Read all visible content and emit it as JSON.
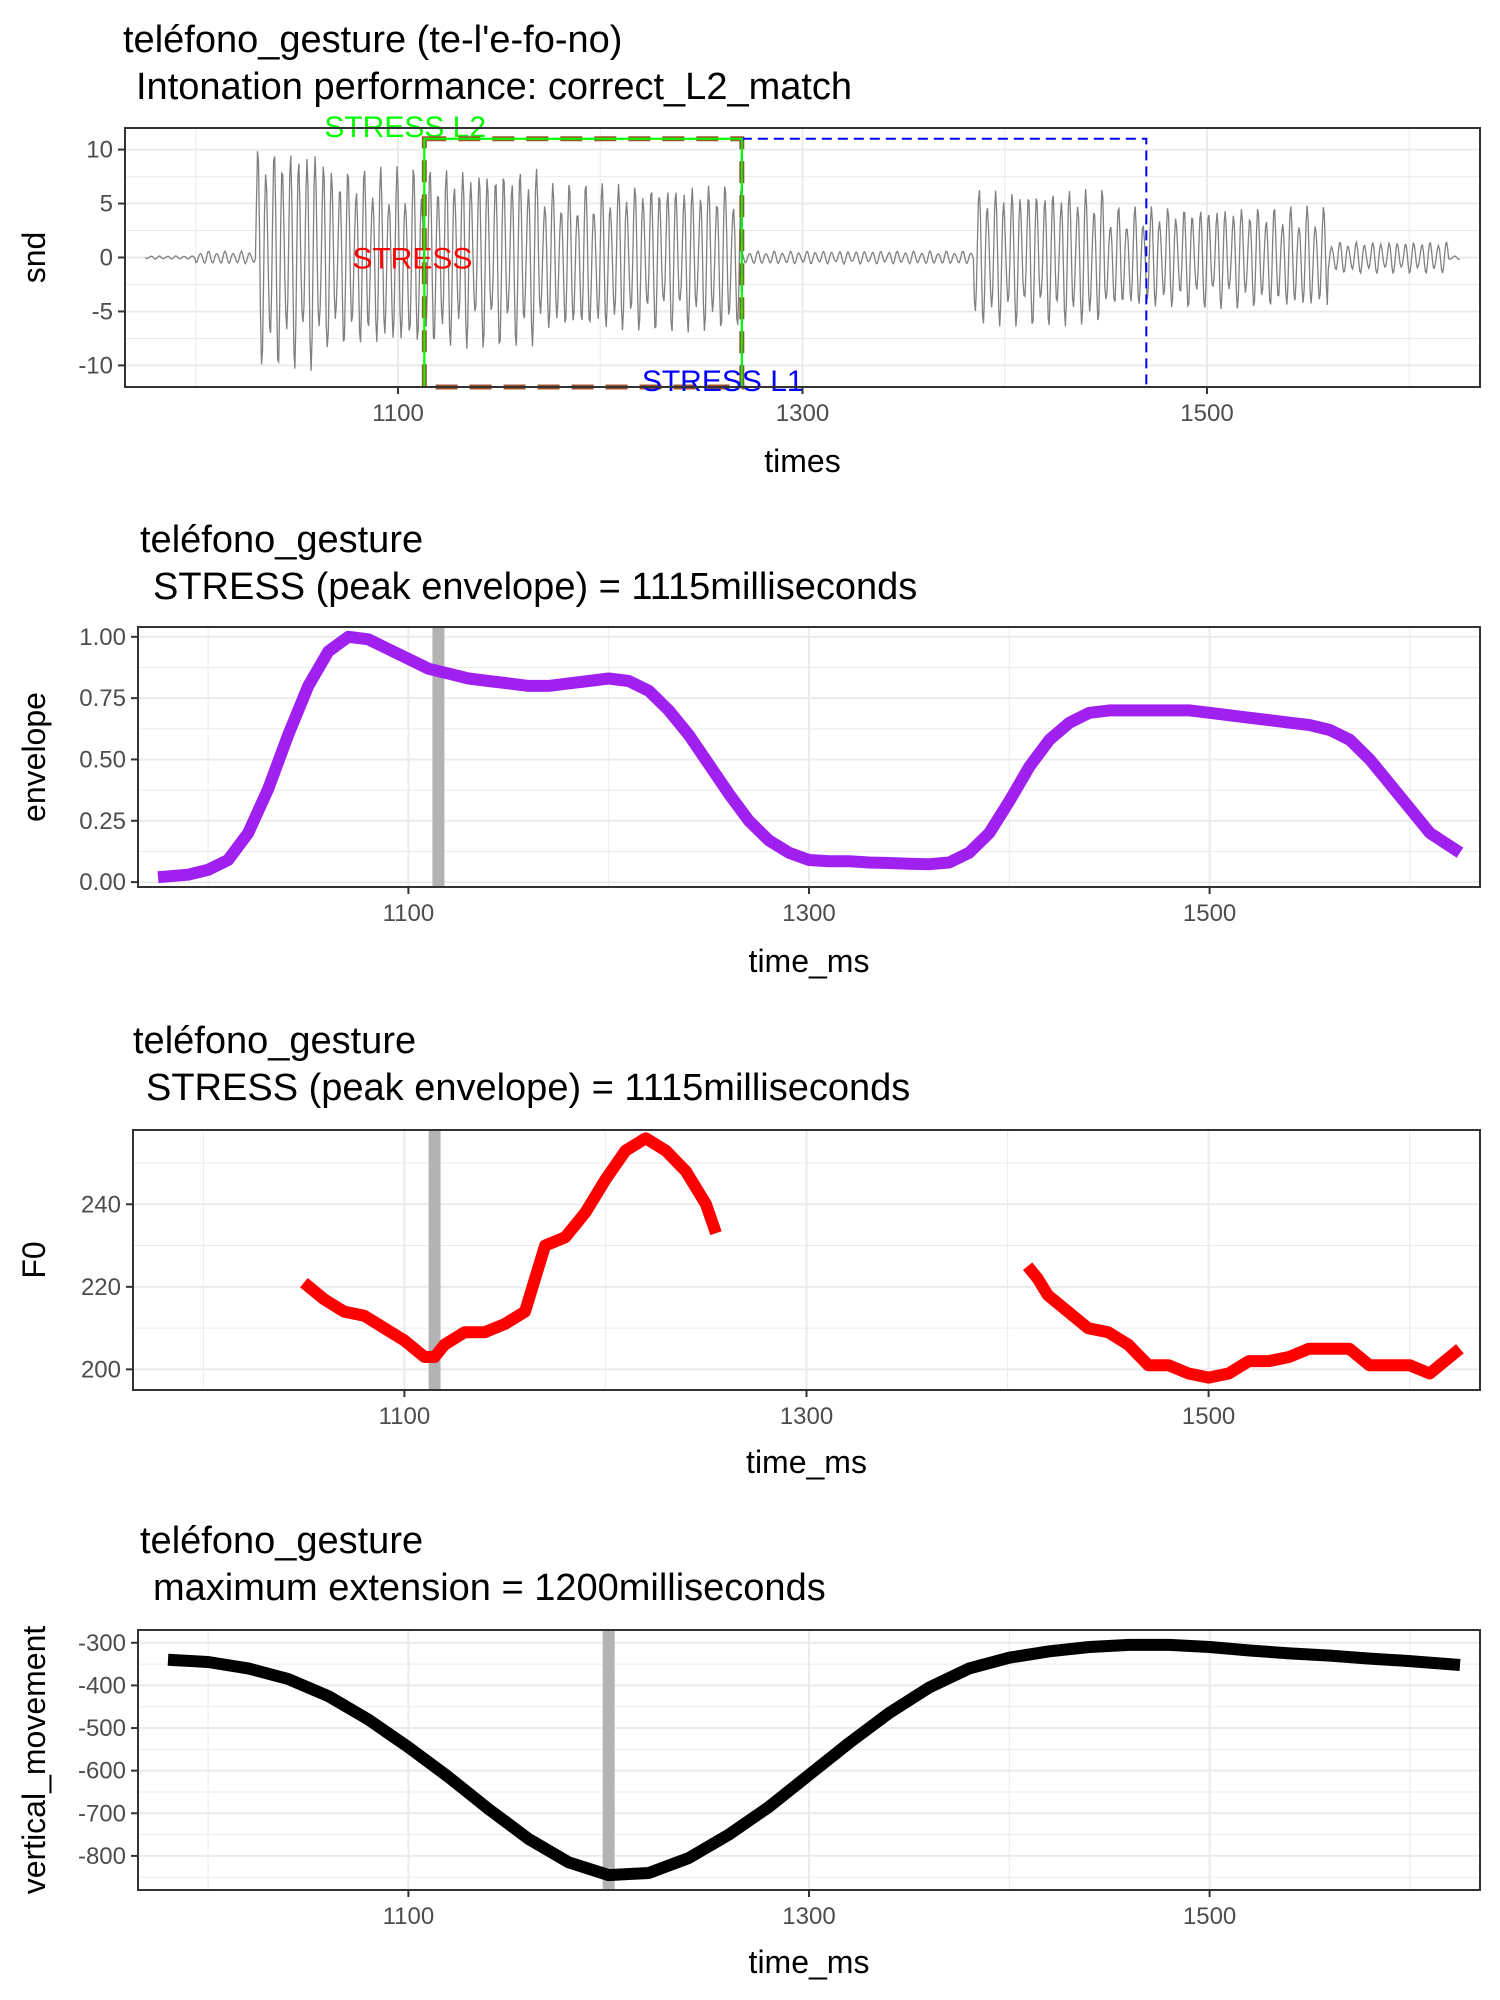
{
  "chart_data": [
    {
      "type": "line",
      "title": "teléfono_gesture  (te-l'e-fo-no)",
      "subtitle": "Intonation performance: correct_L2_match",
      "xlabel": "times",
      "ylabel": "snd",
      "xlim": [
        965,
        1635
      ],
      "ylim": [
        -12,
        12
      ],
      "x_ticks": [
        1100,
        1300,
        1500
      ],
      "y_ticks": [
        10,
        5,
        0,
        -5,
        -10
      ],
      "grid": true,
      "line_color": "#808080",
      "waveform_segments": [
        {
          "start": 1000,
          "end": 1030,
          "amplitude": 0.6
        },
        {
          "start": 1030,
          "end": 1065,
          "amplitude": 10.5
        },
        {
          "start": 1065,
          "end": 1170,
          "amplitude": 8.5
        },
        {
          "start": 1170,
          "end": 1270,
          "amplitude": 7
        },
        {
          "start": 1270,
          "end": 1385,
          "amplitude": 0.6
        },
        {
          "start": 1385,
          "end": 1450,
          "amplitude": 6.5
        },
        {
          "start": 1450,
          "end": 1560,
          "amplitude": 4.8
        },
        {
          "start": 1560,
          "end": 1620,
          "amplitude": 1.5
        }
      ],
      "boxes": [
        {
          "label": "STRESS L2",
          "xmin": 1113,
          "xmax": 1270,
          "ymin": -12,
          "ymax": 11,
          "color": "#00ff00",
          "dashed": false,
          "label_pos": "top"
        },
        {
          "label": "STRESS",
          "xmin": 1113,
          "xmax": 1270,
          "ymin": -12,
          "ymax": 11,
          "color": "#a0522d",
          "dashed": true,
          "label_pos": "middle",
          "label_color": "#ff0000"
        },
        {
          "label": "STRESS L1",
          "xmin": 1270,
          "xmax": 1470,
          "ymin": -12,
          "ymax": 11,
          "color": "#0000ff",
          "dashed": true,
          "label_pos": "bottom"
        }
      ]
    },
    {
      "type": "line",
      "title": "teléfono_gesture",
      "subtitle": "STRESS (peak envelope) = 1115milliseconds",
      "xlabel": "time_ms",
      "ylabel": "envelope",
      "xlim": [
        965,
        1635
      ],
      "ylim": [
        -0.02,
        1.04
      ],
      "x_ticks": [
        1100,
        1300,
        1500
      ],
      "y_ticks": [
        1.0,
        0.75,
        0.5,
        0.25,
        0.0
      ],
      "y_tick_labels": [
        "1.00",
        "0.75",
        "0.50",
        "0.25",
        "0.00"
      ],
      "grid": true,
      "line_color": "#a020f0",
      "vline": 1115,
      "series": [
        {
          "x": [
            975,
            990,
            1000,
            1010,
            1020,
            1030,
            1040,
            1050,
            1060,
            1070,
            1080,
            1090,
            1100,
            1110,
            1120,
            1130,
            1140,
            1150,
            1160,
            1170,
            1180,
            1190,
            1200,
            1210,
            1220,
            1230,
            1240,
            1250,
            1260,
            1270,
            1280,
            1290,
            1300,
            1310,
            1320,
            1330,
            1340,
            1350,
            1360,
            1370,
            1380,
            1390,
            1400,
            1410,
            1420,
            1430,
            1440,
            1450,
            1460,
            1470,
            1480,
            1490,
            1500,
            1510,
            1520,
            1530,
            1540,
            1550,
            1560,
            1570,
            1580,
            1590,
            1600,
            1610,
            1625
          ],
          "values": [
            0.02,
            0.03,
            0.05,
            0.09,
            0.2,
            0.38,
            0.6,
            0.8,
            0.94,
            1.0,
            0.99,
            0.95,
            0.91,
            0.87,
            0.85,
            0.83,
            0.82,
            0.81,
            0.8,
            0.8,
            0.81,
            0.82,
            0.83,
            0.82,
            0.78,
            0.7,
            0.6,
            0.48,
            0.36,
            0.25,
            0.17,
            0.12,
            0.09,
            0.085,
            0.085,
            0.08,
            0.078,
            0.075,
            0.073,
            0.08,
            0.12,
            0.2,
            0.33,
            0.47,
            0.58,
            0.65,
            0.69,
            0.7,
            0.7,
            0.7,
            0.7,
            0.7,
            0.69,
            0.68,
            0.67,
            0.66,
            0.65,
            0.64,
            0.62,
            0.58,
            0.5,
            0.4,
            0.3,
            0.2,
            0.12
          ]
        }
      ]
    },
    {
      "type": "line",
      "title": "teléfono_gesture",
      "subtitle": "STRESS (peak envelope) = 1115milliseconds",
      "xlabel": "time_ms",
      "ylabel": "F0",
      "xlim": [
        965,
        1635
      ],
      "ylim": [
        195,
        258
      ],
      "x_ticks": [
        1100,
        1300,
        1500
      ],
      "y_ticks": [
        240,
        220,
        200
      ],
      "grid": true,
      "line_color": "#ff0000",
      "vline": 1115,
      "series": [
        {
          "x": [
            1050,
            1060,
            1070,
            1080,
            1090,
            1100,
            1110,
            1115,
            1120,
            1130,
            1140,
            1150,
            1160,
            1170,
            1180,
            1190,
            1200,
            1210,
            1220,
            1230,
            1240,
            1250,
            1255
          ],
          "values": [
            221,
            217,
            214,
            213,
            210,
            207,
            203,
            203,
            206,
            209,
            209,
            211,
            214,
            230,
            232,
            238,
            246,
            253,
            256,
            253,
            248,
            240,
            233
          ]
        },
        {
          "x": [
            1410,
            1415,
            1420,
            1430,
            1440,
            1450,
            1460,
            1470,
            1480,
            1490,
            1500,
            1510,
            1520,
            1530,
            1540,
            1550,
            1560,
            1570,
            1580,
            1590,
            1600,
            1610,
            1625
          ],
          "values": [
            225,
            222,
            218,
            214,
            210,
            209,
            206,
            201,
            201,
            199,
            198,
            199,
            202,
            202,
            203,
            205,
            205,
            205,
            201,
            201,
            201,
            199,
            205
          ]
        }
      ]
    },
    {
      "type": "line",
      "title": "teléfono_gesture",
      "subtitle": "maximum extension = 1200milliseconds",
      "xlabel": "time_ms",
      "ylabel": "vertical_movement",
      "xlim": [
        965,
        1635
      ],
      "ylim": [
        -880,
        -270
      ],
      "x_ticks": [
        1100,
        1300,
        1500
      ],
      "y_ticks": [
        -300,
        -400,
        -500,
        -600,
        -700,
        -800
      ],
      "grid": true,
      "line_color": "#000000",
      "vline": 1200,
      "series": [
        {
          "x": [
            980,
            1000,
            1020,
            1040,
            1060,
            1080,
            1100,
            1120,
            1140,
            1160,
            1180,
            1200,
            1220,
            1240,
            1260,
            1280,
            1300,
            1320,
            1340,
            1360,
            1380,
            1400,
            1420,
            1440,
            1460,
            1480,
            1500,
            1520,
            1540,
            1560,
            1580,
            1600,
            1625
          ],
          "values": [
            -340,
            -345,
            -360,
            -385,
            -425,
            -480,
            -545,
            -615,
            -690,
            -760,
            -815,
            -845,
            -840,
            -805,
            -750,
            -685,
            -610,
            -535,
            -465,
            -405,
            -360,
            -335,
            -320,
            -310,
            -305,
            -305,
            -310,
            -318,
            -325,
            -330,
            -337,
            -343,
            -352
          ]
        }
      ]
    }
  ]
}
